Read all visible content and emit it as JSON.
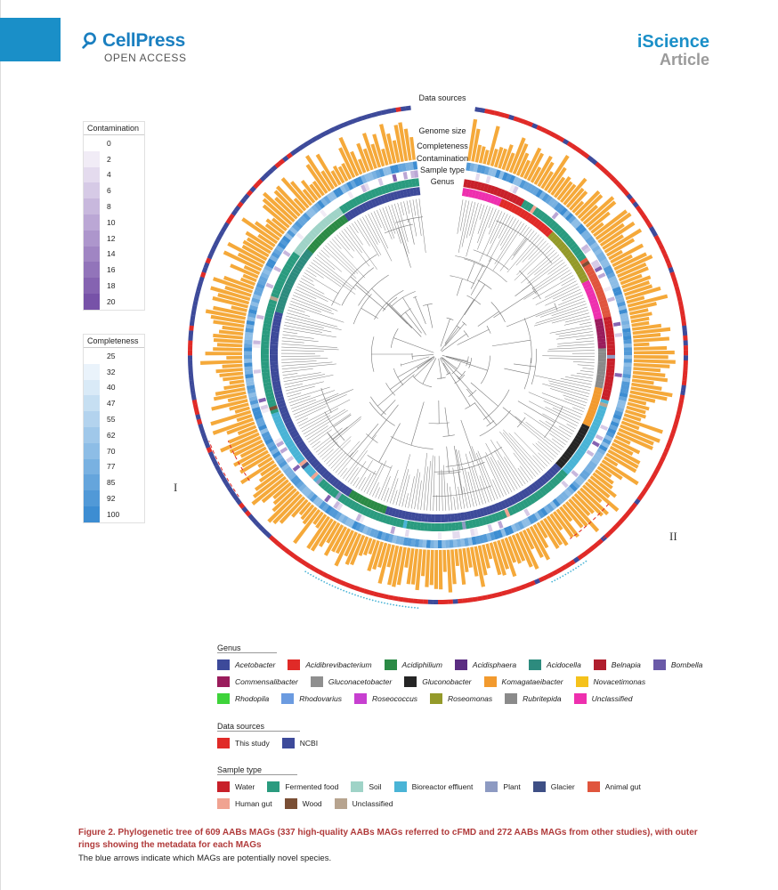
{
  "header": {
    "publisher": "CellPress",
    "publisher_sub": "OPEN ACCESS",
    "journal": "iScience",
    "article_type": "Article"
  },
  "tree": {
    "ring_labels": [
      "Data sources",
      "Genome size",
      "Completeness",
      "Contamination",
      "Sample type",
      "Genus"
    ],
    "marker_left": "I",
    "marker_right": "II"
  },
  "contamination_scale": {
    "title": "Contamination",
    "values": [
      "0",
      "2",
      "4",
      "6",
      "8",
      "10",
      "12",
      "14",
      "16",
      "18",
      "20"
    ],
    "colors": [
      "#ffffff",
      "#f1ecf6",
      "#e4dbee",
      "#d6cae6",
      "#c8b8dd",
      "#bba7d5",
      "#ad96cc",
      "#a085c3",
      "#9274ba",
      "#8563b1",
      "#7752a8"
    ]
  },
  "completeness_scale": {
    "title": "Completeness",
    "values": [
      "25",
      "32",
      "40",
      "47",
      "55",
      "62",
      "70",
      "77",
      "85",
      "92",
      "100"
    ],
    "colors": [
      "#ffffff",
      "#eaf3fb",
      "#d9eaf7",
      "#c6dff2",
      "#b3d3ee",
      "#a0c8ea",
      "#8dbde6",
      "#79b1e1",
      "#65a5dc",
      "#5199d7",
      "#3d8dd2"
    ]
  },
  "genus_legend": {
    "title": "Genus",
    "items": [
      {
        "label": "Acetobacter",
        "color": "#3d4a9a"
      },
      {
        "label": "Acidibrevibacterium",
        "color": "#e02a27"
      },
      {
        "label": "Acidiphilium",
        "color": "#2b8a45"
      },
      {
        "label": "Acidisphaera",
        "color": "#5b2d82"
      },
      {
        "label": "Acidocella",
        "color": "#2d8b7e"
      },
      {
        "label": "Belnapia",
        "color": "#b01e2e"
      },
      {
        "label": "Bombella",
        "color": "#6a5aa8"
      },
      {
        "label": "Commensalibacter",
        "color": "#9a1c5c"
      },
      {
        "label": "Gluconacetobacter",
        "color": "#8f8f8f"
      },
      {
        "label": "Gluconobacter",
        "color": "#252525"
      },
      {
        "label": "Komagataeibacter",
        "color": "#f29a2e"
      },
      {
        "label": "Novacetimonas",
        "color": "#f5c21b"
      },
      {
        "label": "Rhodopila",
        "color": "#3ed33a"
      },
      {
        "label": "Rhodovarius",
        "color": "#6b9be0"
      },
      {
        "label": "Roseococcus",
        "color": "#c73fd0"
      },
      {
        "label": "Roseomonas",
        "color": "#949a2a"
      },
      {
        "label": "Rubritepida",
        "color": "#8a8a8a"
      },
      {
        "label": "Unclassified",
        "color": "#ee2fae"
      }
    ]
  },
  "data_sources_legend": {
    "title": "Data sources",
    "items": [
      {
        "label": "This study",
        "color": "#e02a27"
      },
      {
        "label": "NCBI",
        "color": "#3d4a9a"
      }
    ]
  },
  "sample_type_legend": {
    "title": "Sample type",
    "items": [
      {
        "label": "Water",
        "color": "#c8202a"
      },
      {
        "label": "Fermented food",
        "color": "#2a9b7f"
      },
      {
        "label": "Soil",
        "color": "#9fd3c7"
      },
      {
        "label": "Bioreactor effluent",
        "color": "#4ab4d6"
      },
      {
        "label": "Plant",
        "color": "#8d9ac2"
      },
      {
        "label": "Glacier",
        "color": "#3e4f85"
      },
      {
        "label": "Animal gut",
        "color": "#e0553d"
      },
      {
        "label": "Human gut",
        "color": "#f0a391"
      },
      {
        "label": "Wood",
        "color": "#7a4f35"
      },
      {
        "label": "Unclassified",
        "color": "#b7a48f"
      }
    ]
  },
  "caption": {
    "title": "Figure 2.  Phylogenetic tree of 609 AABs MAGs (337 high-quality AABs MAGs referred to cFMD and 272 AABs MAGs from other studies), with outer rings showing the metadata for each MAGs",
    "text": "The blue arrows indicate which MAGs are potentially novel species."
  }
}
